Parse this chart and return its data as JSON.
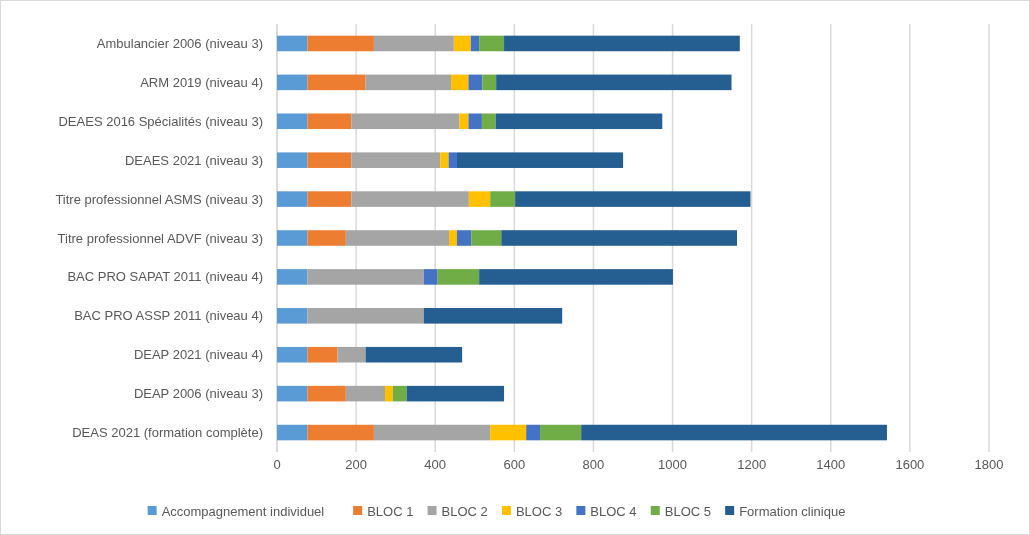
{
  "chart_data": {
    "type": "bar",
    "orientation": "horizontal",
    "stacked": true,
    "categories": [
      "Ambulancier 2006 (niveau 3)",
      "ARM 2019 (niveau 4)",
      "DEAES 2016 Spécialités (niveau 3)",
      "DEAES 2021 (niveau 3)",
      "Titre professionnel ASMS (niveau 3)",
      "Titre professionnel ADVF (niveau 3)",
      "BAC PRO SAPAT 2011 (niveau 4)",
      "BAC PRO ASSP 2011 (niveau 4)",
      "DEAP 2021 (niveau 4)",
      "DEAP 2006 (niveau 3)",
      "DEAS 2021 (formation complète)"
    ],
    "series": [
      {
        "name": "Accompagnement individuel",
        "color": "#5b9bd5",
        "values": [
          77,
          77,
          77,
          77,
          77,
          77,
          77,
          77,
          77,
          77,
          77
        ]
      },
      {
        "name": "BLOC 1",
        "color": "#ed7d31",
        "values": [
          168,
          147,
          111,
          111,
          111,
          97,
          0,
          0,
          76,
          97,
          168
        ]
      },
      {
        "name": "BLOC 2",
        "color": "#a5a5a5",
        "values": [
          202,
          216,
          273,
          225,
          297,
          261,
          294,
          294,
          71,
          99,
          294
        ]
      },
      {
        "name": "BLOC 3",
        "color": "#ffc000",
        "values": [
          43,
          44,
          23,
          21,
          54,
          20,
          0,
          0,
          0,
          20,
          91
        ]
      },
      {
        "name": "BLOC 4",
        "color": "#4472c4",
        "values": [
          21,
          35,
          34,
          21,
          0,
          36,
          35,
          0,
          0,
          0,
          35
        ]
      },
      {
        "name": "BLOC 5",
        "color": "#70ad47",
        "values": [
          63,
          35,
          35,
          0,
          63,
          76,
          105,
          0,
          0,
          35,
          104
        ]
      },
      {
        "name": "Formation clinique",
        "color": "#255e91",
        "values": [
          596,
          595,
          421,
          420,
          595,
          596,
          490,
          350,
          244,
          246,
          773
        ]
      }
    ],
    "xlim": [
      0,
      1800
    ],
    "xticks": [
      0,
      200,
      400,
      600,
      800,
      1000,
      1200,
      1400,
      1600,
      1800
    ],
    "grid": "x",
    "legend": "bottom"
  }
}
